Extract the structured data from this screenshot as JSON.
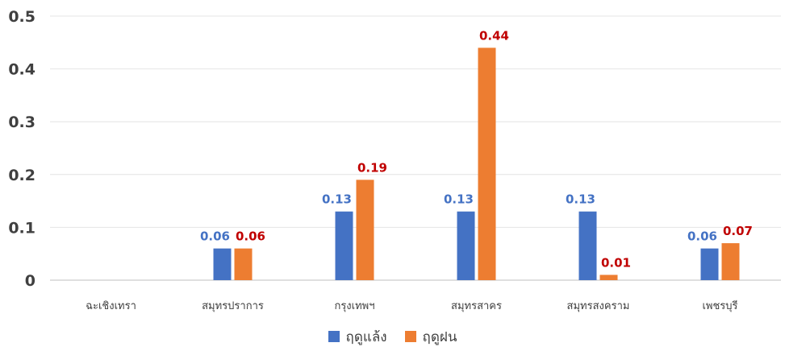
{
  "chart_data": {
    "type": "bar",
    "categories": [
      "ฉะเชิงเทรา",
      "สมุทรปราการ",
      "กรุงเทพฯ",
      "สมุทรสาคร",
      "สมุทรสงคราม",
      "เพชรบุรี"
    ],
    "series": [
      {
        "name": "ฤดูแล้ง",
        "color": "#4472C4",
        "label_color": "#4472C4",
        "values": [
          null,
          0.06,
          0.13,
          0.13,
          0.13,
          0.06
        ],
        "labels": [
          "",
          "0.06",
          "0.13",
          "0.13",
          "0.13",
          "0.06"
        ]
      },
      {
        "name": "ฤดูฝน",
        "color": "#ED7D31",
        "label_color": "#C00000",
        "values": [
          null,
          0.06,
          0.19,
          0.44,
          0.01,
          0.07
        ],
        "labels": [
          "",
          "0.06",
          "0.19",
          "0.44",
          "0.01",
          "0.07"
        ]
      }
    ],
    "y_ticks": [
      "0",
      "0.1",
      "0.2",
      "0.3",
      "0.4",
      "0.5"
    ],
    "ylim": [
      0,
      0.5
    ],
    "grid": true,
    "legend_position": "bottom"
  }
}
